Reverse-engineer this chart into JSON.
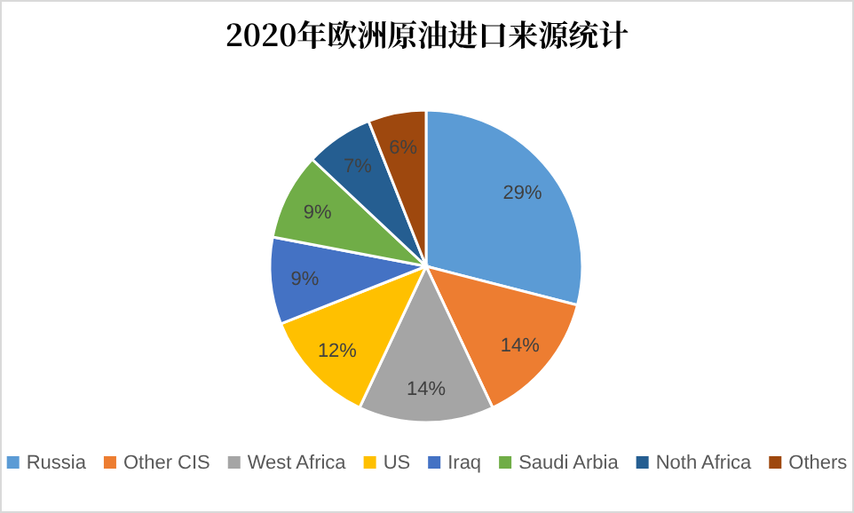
{
  "chart_data": {
    "type": "pie",
    "title": "2020年欧洲原油进口来源统计",
    "categories": [
      "Russia",
      "Other CIS",
      "West Africa",
      "US",
      "Iraq",
      "Saudi Arbia",
      "Noth Africa",
      "Others"
    ],
    "values": [
      29,
      14,
      14,
      12,
      9,
      9,
      7,
      6
    ],
    "colors": [
      "#5b9bd5",
      "#ed7d31",
      "#a5a5a5",
      "#ffc000",
      "#4472c4",
      "#70ad47",
      "#255e91",
      "#9e480e"
    ],
    "value_labels": [
      "29%",
      "14%",
      "14%",
      "12%",
      "9%",
      "9%",
      "7%",
      "6%"
    ],
    "legend": "bottom"
  }
}
